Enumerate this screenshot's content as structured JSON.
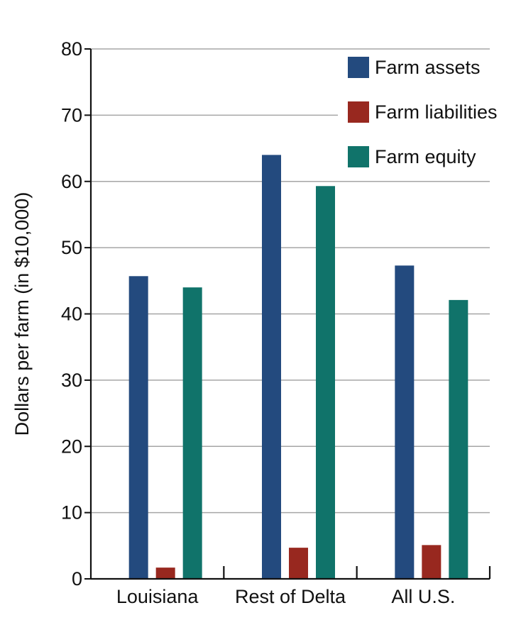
{
  "chart_data": {
    "type": "bar",
    "title": "",
    "xlabel": "",
    "ylabel": "Dollars per farm (in $10,000)",
    "ylim": [
      0,
      80
    ],
    "yticks": [
      0,
      10,
      20,
      30,
      40,
      50,
      60,
      70,
      80
    ],
    "grid": true,
    "legend_position": "top-right",
    "categories": [
      "Louisiana",
      "Rest of Delta",
      "All U.S."
    ],
    "series": [
      {
        "name": "Farm assets",
        "color": "#234a7e",
        "values": [
          45.7,
          64.0,
          47.3
        ]
      },
      {
        "name": "Farm liabilities",
        "color": "#98281f",
        "values": [
          1.7,
          4.7,
          5.1
        ]
      },
      {
        "name": "Farm equity",
        "color": "#10736a",
        "values": [
          44.0,
          59.3,
          42.1
        ]
      }
    ]
  }
}
